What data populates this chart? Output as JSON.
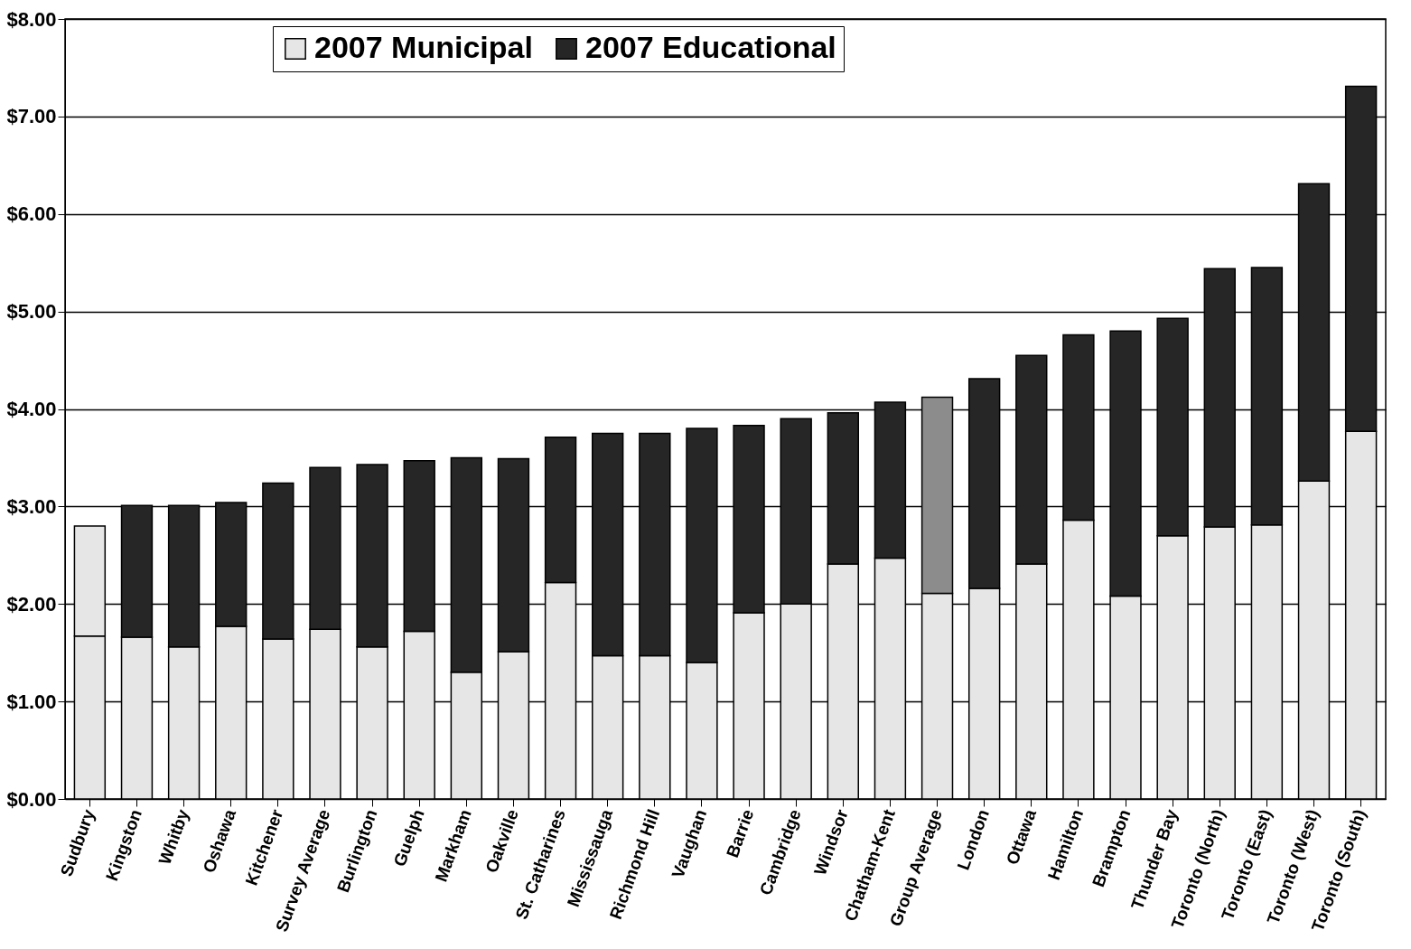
{
  "chart_data": {
    "type": "bar",
    "stacked": true,
    "legend": "top",
    "grid": "y",
    "categories": [
      "Sudbury",
      "Kingston",
      "Whitby",
      "Oshawa",
      "Kitchener",
      "Survey Average",
      "Burlington",
      "Guelph",
      "Markham",
      "Oakville",
      "St. Catharines",
      "Mississauga",
      "Richmond Hill",
      "Vaughan",
      "Barrie",
      "Cambridge",
      "Windsor",
      "Chatham-Kent",
      "Group Average",
      "London",
      "Ottawa",
      "Hamilton",
      "Brampton",
      "Thunder Bay",
      "Toronto (North)",
      "Toronto (East)",
      "Toronto (West)",
      "Toronto (South)"
    ],
    "series": [
      {
        "name": "2007 Municipal",
        "color": "#e6e6e6",
        "values": [
          1.67,
          1.66,
          1.56,
          1.77,
          1.64,
          1.74,
          1.56,
          1.72,
          1.3,
          1.51,
          2.22,
          1.47,
          1.47,
          1.4,
          1.91,
          2.0,
          2.41,
          2.47,
          2.11,
          2.16,
          2.41,
          2.86,
          2.08,
          2.7,
          2.79,
          2.81,
          3.26,
          3.77
        ]
      },
      {
        "name": "2007 Educational",
        "color": "#262626",
        "colors": [
          "#e6e6e6",
          "#262626",
          "#262626",
          "#262626",
          "#262626",
          "#262626",
          "#262626",
          "#262626",
          "#262626",
          "#262626",
          "#262626",
          "#262626",
          "#262626",
          "#262626",
          "#262626",
          "#262626",
          "#262626",
          "#262626",
          "#8c8c8c",
          "#262626",
          "#262626",
          "#262626",
          "#262626",
          "#262626",
          "#262626",
          "#262626",
          "#262626",
          "#262626"
        ],
        "values": [
          1.13,
          1.35,
          1.45,
          1.27,
          1.6,
          1.66,
          1.87,
          1.75,
          2.2,
          1.98,
          1.49,
          2.28,
          2.28,
          2.4,
          1.92,
          1.9,
          1.55,
          1.6,
          2.01,
          2.15,
          2.14,
          1.9,
          2.72,
          2.23,
          2.65,
          2.64,
          3.05,
          3.54
        ]
      }
    ],
    "ylim": [
      0,
      8
    ],
    "yticks": [
      {
        "value": 0,
        "label": "$0.00"
      },
      {
        "value": 1,
        "label": "$1.00"
      },
      {
        "value": 2,
        "label": "$2.00"
      },
      {
        "value": 3,
        "label": "$3.00"
      },
      {
        "value": 4,
        "label": "$4.00"
      },
      {
        "value": 5,
        "label": "$5.00"
      },
      {
        "value": 6,
        "label": "$6.00"
      },
      {
        "value": 7,
        "label": "$7.00"
      },
      {
        "value": 8,
        "label": "$8.00"
      }
    ]
  }
}
